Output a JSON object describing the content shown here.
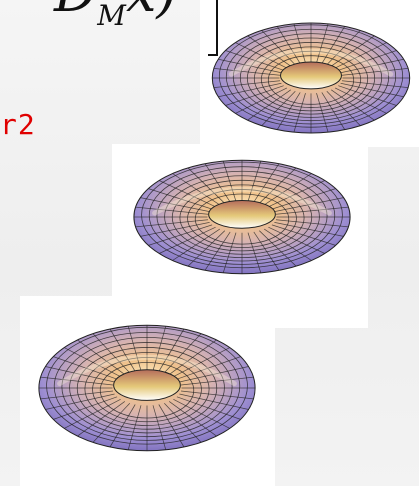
{
  "formula": {
    "main": "D",
    "subscript": "M",
    "tail": "x)"
  },
  "red_term": "r2",
  "colors": {
    "background": "#f1f1f1",
    "panel": "#ffffff",
    "red_term": "#e00000",
    "torus_outer": "#9e8fd2",
    "torus_inner": "#f0c28b",
    "wireframe": "#222222"
  },
  "toruses": [
    {
      "name": "torus-top"
    },
    {
      "name": "torus-middle"
    },
    {
      "name": "torus-bottom"
    }
  ]
}
